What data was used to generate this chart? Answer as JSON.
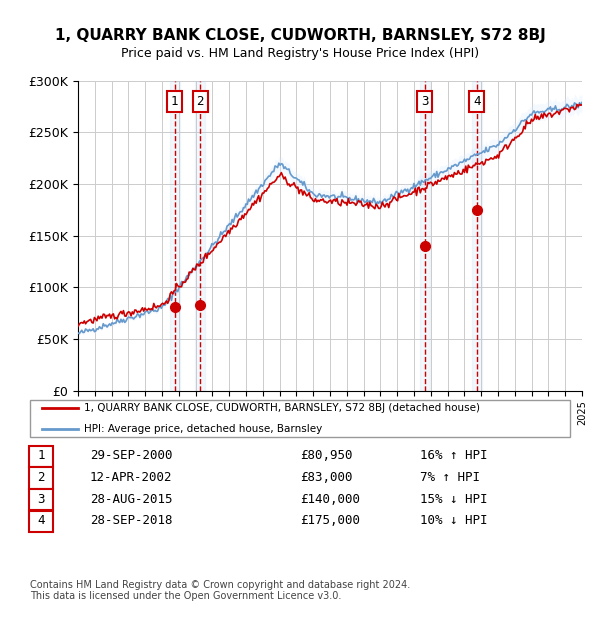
{
  "title": "1, QUARRY BANK CLOSE, CUDWORTH, BARNSLEY, S72 8BJ",
  "subtitle": "Price paid vs. HM Land Registry's House Price Index (HPI)",
  "ylabel": "",
  "ylim": [
    0,
    300000
  ],
  "yticks": [
    0,
    50000,
    100000,
    150000,
    200000,
    250000,
    300000
  ],
  "ytick_labels": [
    "£0",
    "£50K",
    "£100K",
    "£150K",
    "£200K",
    "£250K",
    "£300K"
  ],
  "x_start_year": 1995,
  "x_end_year": 2025,
  "sale_dates": [
    2000.75,
    2002.28,
    2015.65,
    2018.74
  ],
  "sale_prices": [
    80950,
    83000,
    140000,
    175000
  ],
  "sale_labels": [
    "1",
    "2",
    "3",
    "4"
  ],
  "sale_color": "#cc0000",
  "hpi_color": "#6699cc",
  "hpi_shading_color": "#ddeeff",
  "legend_entries": [
    "1, QUARRY BANK CLOSE, CUDWORTH, BARNSLEY, S72 8BJ (detached house)",
    "HPI: Average price, detached house, Barnsley"
  ],
  "table_rows": [
    [
      "1",
      "29-SEP-2000",
      "£80,950",
      "16% ↑ HPI"
    ],
    [
      "2",
      "12-APR-2002",
      "£83,000",
      "7% ↑ HPI"
    ],
    [
      "3",
      "28-AUG-2015",
      "£140,000",
      "15% ↓ HPI"
    ],
    [
      "4",
      "28-SEP-2018",
      "£175,000",
      "10% ↓ HPI"
    ]
  ],
  "footnote": "Contains HM Land Registry data © Crown copyright and database right 2024.\nThis data is licensed under the Open Government Licence v3.0.",
  "background_color": "#ffffff",
  "grid_color": "#cccccc"
}
